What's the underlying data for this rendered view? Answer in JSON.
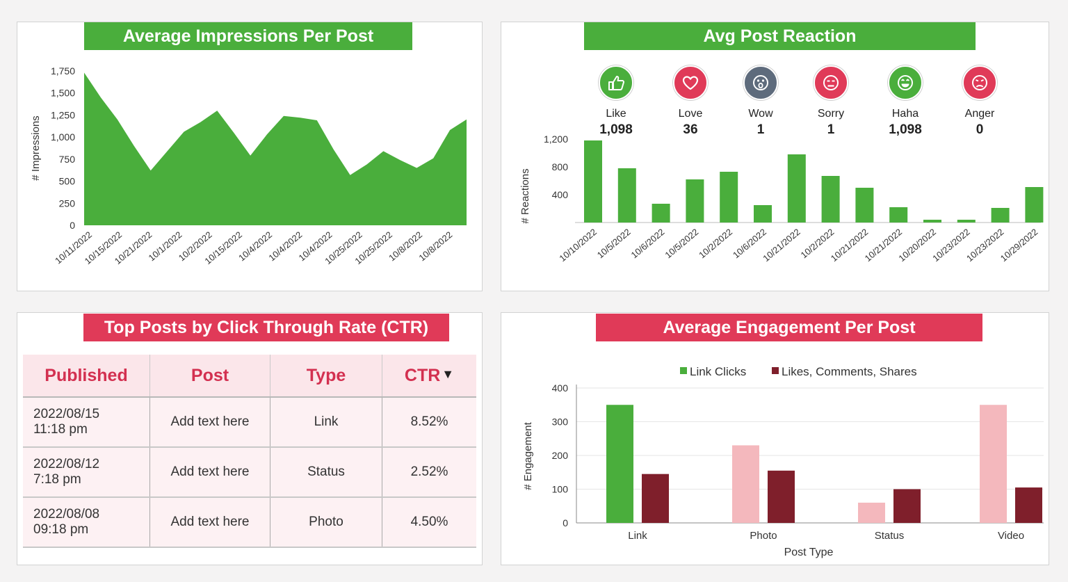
{
  "impressions": {
    "title": "Average Impressions Per Post",
    "chart_data": {
      "type": "area",
      "ylabel": "# Impressions",
      "ylim": [
        0,
        1750
      ],
      "yticks": [
        "1,750",
        "1,500",
        "1,250",
        "1,000",
        "750",
        "500",
        "250",
        "0"
      ],
      "x_labels": [
        "10/11/2022",
        "10/15/2022",
        "10/21/2022",
        "10/1/2022",
        "10/2/2022",
        "10/15/2022",
        "10/4/2022",
        "10/4/2022",
        "10/4/2022",
        "10/25/2022",
        "10/25/2022",
        "10/8/2022",
        "10/8/2022"
      ],
      "values": [
        1730,
        1450,
        1200,
        900,
        620,
        840,
        1060,
        1170,
        1300,
        1050,
        790,
        1030,
        1240,
        1220,
        1190,
        860,
        570,
        690,
        840,
        740,
        650,
        760,
        1080,
        1200
      ],
      "color": "#4aae3c"
    }
  },
  "reaction": {
    "title": "Avg Post Reaction",
    "items": [
      {
        "name": "Like",
        "value": "1,098",
        "icon": "thumbs-up-icon",
        "color": "#4aae3c"
      },
      {
        "name": "Love",
        "value": "36",
        "icon": "heart-icon",
        "color": "#e03a58"
      },
      {
        "name": "Wow",
        "value": "1",
        "icon": "wow-face-icon",
        "color": "#5e6b7c"
      },
      {
        "name": "Sorry",
        "value": "1",
        "icon": "sad-face-icon",
        "color": "#e03a58"
      },
      {
        "name": "Haha",
        "value": "1,098",
        "icon": "laughing-face-icon",
        "color": "#4aae3c"
      },
      {
        "name": "Anger",
        "value": "0",
        "icon": "angry-face-icon",
        "color": "#e03a58"
      }
    ],
    "chart_data": {
      "type": "bar",
      "ylabel": "# Reactions",
      "ylim": [
        0,
        1400
      ],
      "yticks": [
        "1,200",
        "800",
        "400"
      ],
      "categories": [
        "10/10/2022",
        "10/5/2022",
        "10/6/2022",
        "10/5/2022",
        "10/2/2022",
        "10/6/2022",
        "10/21/2022",
        "10/2/2022",
        "10/21/2022",
        "10/21/2022",
        "10/20/2022",
        "10/23/2022",
        "10/23/2022",
        "10/29/2022"
      ],
      "values": [
        1180,
        780,
        270,
        620,
        730,
        250,
        980,
        670,
        500,
        220,
        40,
        40,
        210,
        510
      ],
      "color": "#4aae3c"
    }
  },
  "ctr": {
    "title": "Top Posts by Click Through Rate (CTR)",
    "headers": [
      "Published",
      "Post",
      "Type",
      "CTR"
    ],
    "sort_indicator": "▼",
    "rows": [
      {
        "date": "2022/08/15",
        "time": "11:18 pm",
        "post": "Add text here",
        "type": "Link",
        "ctr": "8.52%"
      },
      {
        "date": "2022/08/12",
        "time": "7:18 pm",
        "post": "Add text here",
        "type": "Status",
        "ctr": "2.52%"
      },
      {
        "date": "2022/08/08",
        "time": "09:18 pm",
        "post": "Add text here",
        "type": "Photo",
        "ctr": "4.50%"
      }
    ]
  },
  "engagement": {
    "title": "Average Engagement Per Post",
    "chart_data": {
      "type": "bar",
      "xlabel": "Post Type",
      "ylabel": "# Engagement",
      "ylim": [
        0,
        400
      ],
      "yticks": [
        "400",
        "300",
        "200",
        "100",
        "0"
      ],
      "categories": [
        "Link",
        "Photo",
        "Status",
        "Video"
      ],
      "series": [
        {
          "name": "Link Clicks",
          "values": [
            350,
            230,
            60,
            350
          ],
          "colors": [
            "#4aae3c",
            "#f4b8bd",
            "#f4b8bd",
            "#f4b8bd"
          ]
        },
        {
          "name": "Likes, Comments, Shares",
          "values": [
            145,
            155,
            100,
            105
          ],
          "colors": [
            "#7f1f2b",
            "#7f1f2b",
            "#7f1f2b",
            "#7f1f2b"
          ]
        }
      ],
      "legend_colors": [
        "#4aae3c",
        "#7f1f2b"
      ],
      "legend": "top"
    }
  }
}
